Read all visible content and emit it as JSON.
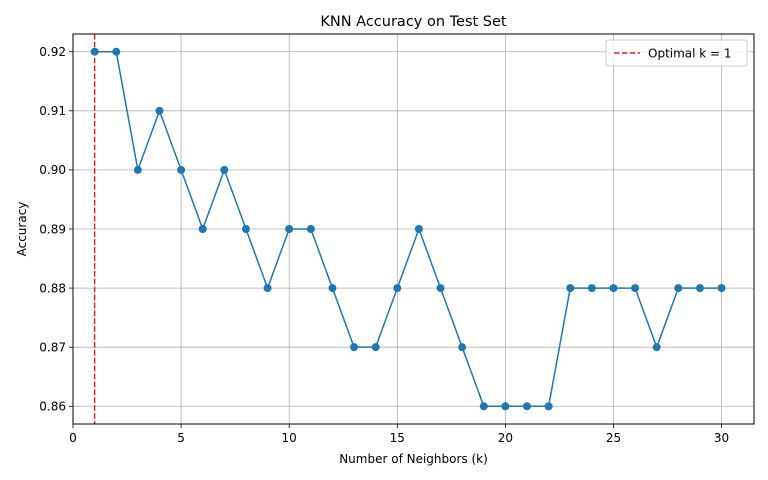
{
  "chart_data": {
    "type": "line",
    "title": "KNN Accuracy on Test Set",
    "xlabel": "Number of Neighbors (k)",
    "ylabel": "Accuracy",
    "xlim": [
      0,
      31.5
    ],
    "ylim": [
      0.857,
      0.923
    ],
    "xticks": [
      0,
      5,
      10,
      15,
      20,
      25,
      30
    ],
    "yticks": [
      0.86,
      0.87,
      0.88,
      0.89,
      0.9,
      0.91,
      0.92
    ],
    "ytick_labels": [
      "0.86",
      "0.87",
      "0.88",
      "0.89",
      "0.90",
      "0.91",
      "0.92"
    ],
    "grid": true,
    "legend_position": "top-right",
    "series": [
      {
        "x": [
          1,
          2,
          3,
          4,
          5,
          6,
          7,
          8,
          9,
          10,
          11,
          12,
          13,
          14,
          15,
          16,
          17,
          18,
          19,
          20,
          21,
          22,
          23,
          24,
          25,
          26,
          27,
          28,
          29,
          30
        ],
        "values": [
          0.92,
          0.92,
          0.9,
          0.91,
          0.9,
          0.89,
          0.9,
          0.89,
          0.88,
          0.89,
          0.89,
          0.88,
          0.87,
          0.87,
          0.88,
          0.89,
          0.88,
          0.87,
          0.86,
          0.86,
          0.86,
          0.86,
          0.88,
          0.88,
          0.88,
          0.88,
          0.87,
          0.88,
          0.88,
          0.88
        ],
        "color": "#1f77b4"
      }
    ],
    "reference_line": {
      "orientation": "vertical",
      "x": 1,
      "style": "dashed",
      "color": "#d62728",
      "label": "Optimal k = 1"
    }
  }
}
